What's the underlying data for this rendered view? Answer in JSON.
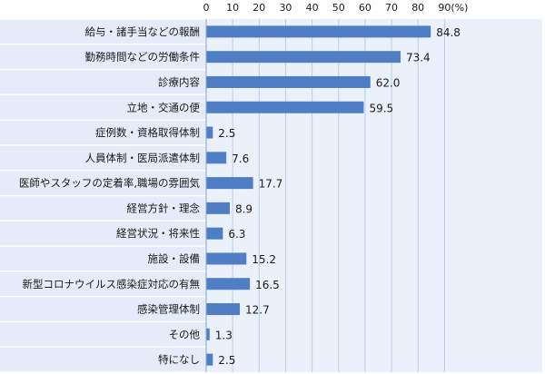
{
  "chart_data": {
    "type": "bar",
    "orientation": "horizontal",
    "categories": [
      "給与・諸手当などの報酬",
      "勤務時間などの労働条件",
      "診療内容",
      "立地・交通の便",
      "症例数・資格取得体制",
      "人員体制・医局派遣体制",
      "医師やスタッフの定着率,職場の雰囲気",
      "経営方針・理念",
      "経営状況・将来性",
      "施設・設備",
      "新型コロナウイルス感染症対応の有無",
      "感染管理体制",
      "その他",
      "特になし"
    ],
    "values": [
      84.8,
      73.4,
      62.0,
      59.5,
      2.5,
      7.6,
      17.7,
      8.9,
      6.3,
      15.2,
      16.5,
      12.7,
      1.3,
      2.5
    ],
    "value_labels": [
      "84.8",
      "73.4",
      "62.0",
      "59.5",
      "2.5",
      "7.6",
      "17.7",
      "8.9",
      "6.3",
      "15.2",
      "16.5",
      "12.7",
      "1.3",
      "2.5"
    ],
    "x_ticks": [
      "0",
      "10",
      "20",
      "30",
      "40",
      "50",
      "60",
      "70",
      "80",
      "90"
    ],
    "x_unit": "(%)",
    "xlim": [
      0,
      90
    ],
    "grid": true,
    "title": "",
    "xlabel": "",
    "ylabel": ""
  },
  "colors": {
    "bar": "#4f7ec5",
    "plot_background": "#eaf1fb",
    "label_background": "#e3ecf8",
    "grid": "#b9cde8"
  }
}
